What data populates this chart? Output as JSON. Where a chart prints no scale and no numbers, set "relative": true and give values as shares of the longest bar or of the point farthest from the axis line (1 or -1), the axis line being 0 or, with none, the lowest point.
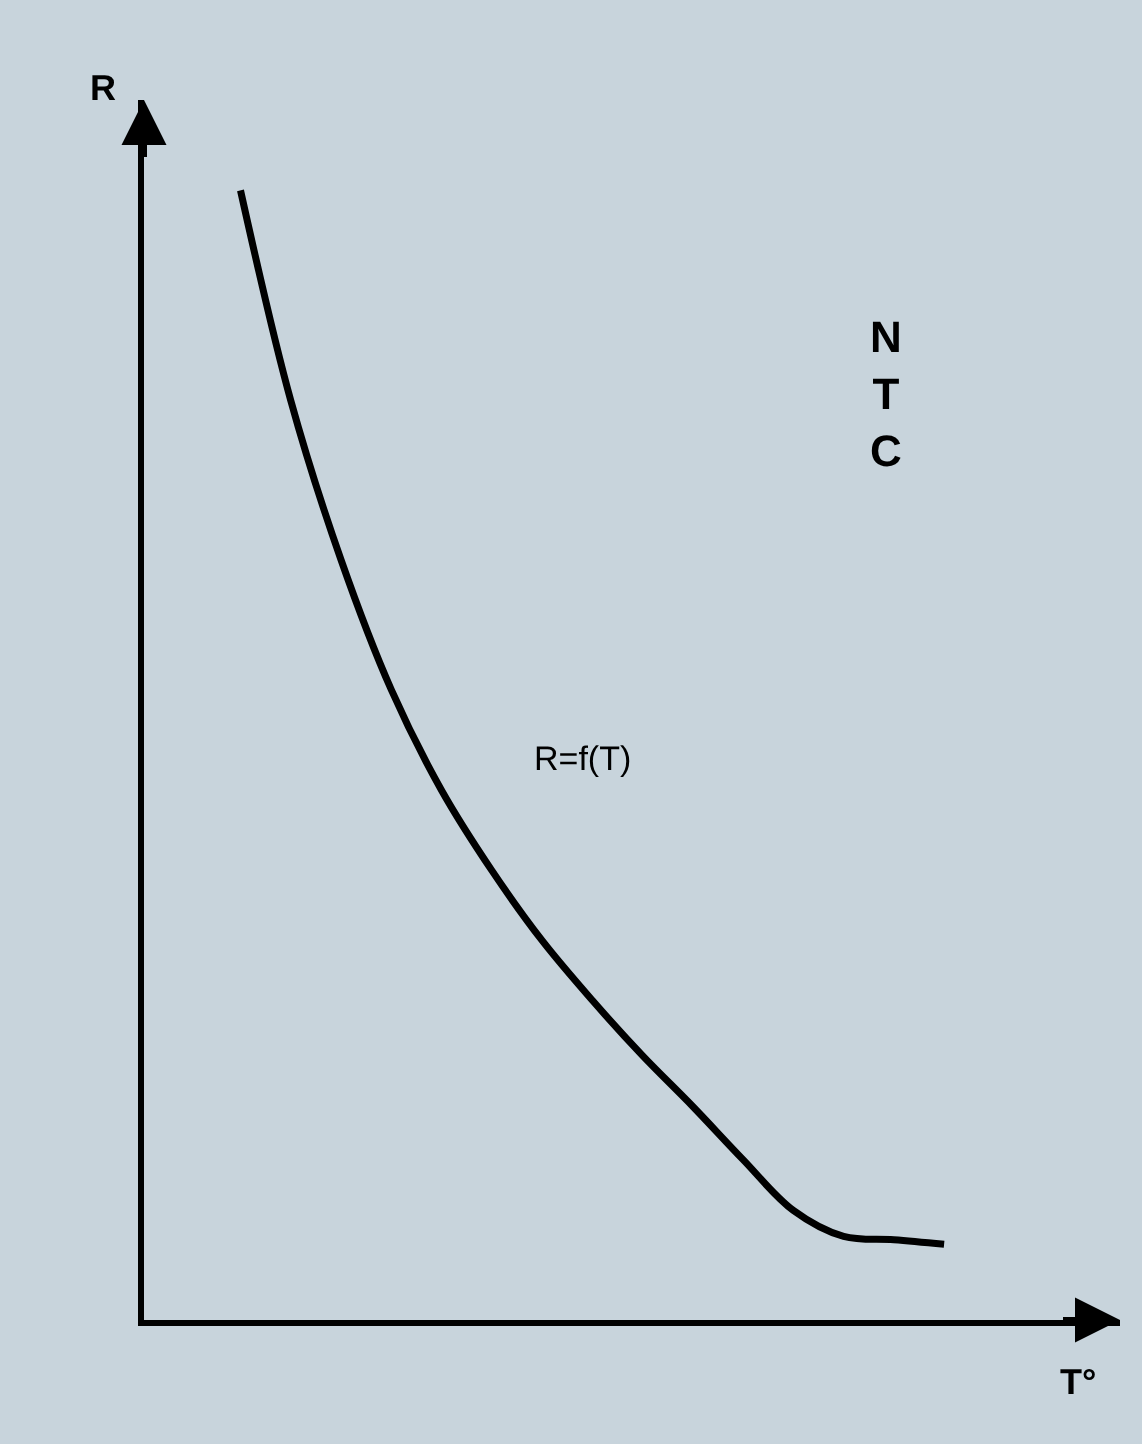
{
  "chart_data": {
    "type": "line",
    "relative": true,
    "categories": [
      null,
      null,
      null,
      null,
      null,
      null,
      null,
      null,
      null,
      null,
      null,
      null,
      null,
      null,
      null
    ],
    "series": [
      {
        "color": "#000000",
        "values": [
          1.0,
          0.814,
          0.673,
          0.558,
          0.469,
          0.398,
          0.336,
          0.283,
          0.234,
          0.189,
          0.142,
          0.097,
          0.074,
          0.071,
          0.067
        ]
      }
    ],
    "xlabel": "T°",
    "ylabel": "R",
    "annotations": [
      "NTC",
      "R=f(T)"
    ],
    "grid": false,
    "legend": false,
    "marker": "none",
    "line_style": "solid"
  }
}
